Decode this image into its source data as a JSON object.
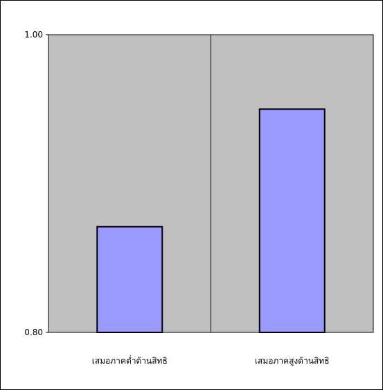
{
  "chart_data": {
    "type": "bar",
    "categories": [
      "เสมอภาคต่ำด้านสิทธิ",
      "เสมอภาคสูงด้านสิทธิ"
    ],
    "values": [
      0.871,
      0.95
    ],
    "ylim": [
      0.8,
      1.0
    ],
    "ytick_labels": [
      "0.80",
      "1.00"
    ],
    "grid": false,
    "legend": "none",
    "colors": {
      "plot_background": "#c0c0c0",
      "bar_fill": "#9999ff",
      "bar_stroke": "#000000",
      "axis": "#000000",
      "frame": "#000000"
    }
  }
}
